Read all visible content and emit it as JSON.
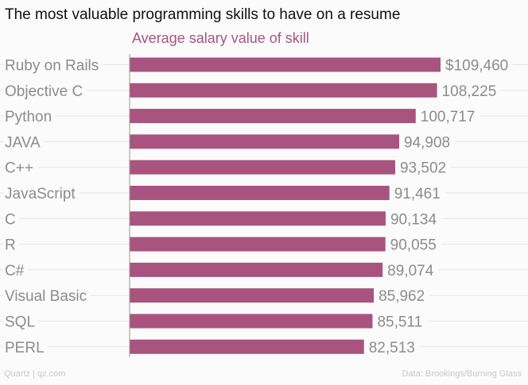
{
  "title": "The most valuable programming skills to have on a resume",
  "footer": {
    "left": "Quartz | qz.com",
    "right": "Data: Brookings/Burning Glass"
  },
  "colors": {
    "bar": "#a8547f",
    "subtitle": "#a8547f",
    "label": "#8c8c8c",
    "grid": "#e6e6e6"
  },
  "chart_data": {
    "type": "bar",
    "orientation": "horizontal",
    "title": "Average salary value of skill",
    "categories": [
      "Ruby on Rails",
      "Objective C",
      "Python",
      "JAVA",
      "C++",
      "JavaScript",
      "C",
      "R",
      "C#",
      "Visual Basic",
      "SQL",
      "PERL"
    ],
    "values": [
      109460,
      108225,
      100717,
      94908,
      93502,
      91461,
      90134,
      90055,
      89074,
      85962,
      85511,
      82513
    ],
    "value_labels": [
      "$109,460",
      "108,225",
      "100,717",
      "94,908",
      "93,502",
      "91,461",
      "90,134",
      "90,055",
      "89,074",
      "85,962",
      "85,511",
      "82,513"
    ],
    "xlim": [
      0,
      109460
    ],
    "grid": true
  }
}
